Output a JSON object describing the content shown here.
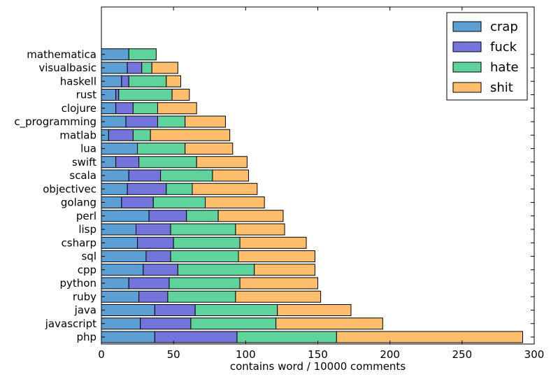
{
  "chart_data": {
    "type": "bar",
    "orientation": "horizontal",
    "stacked": true,
    "title": "",
    "xlabel": "contains word / 10000 comments",
    "ylabel": "",
    "xlim": [
      0,
      300
    ],
    "xticks": [
      0,
      50,
      100,
      150,
      200,
      250,
      300
    ],
    "grid": false,
    "legend_position": "top-right",
    "categories": [
      "php",
      "javascript",
      "java",
      "ruby",
      "python",
      "cpp",
      "sql",
      "csharp",
      "lisp",
      "perl",
      "golang",
      "objectivec",
      "scala",
      "swift",
      "lua",
      "matlab",
      "c_programming",
      "clojure",
      "rust",
      "haskell",
      "visualbasic",
      "mathematica"
    ],
    "series": [
      {
        "name": "crap",
        "color": "#5b9fd4",
        "values": [
          37,
          27,
          37,
          26,
          19,
          29,
          31,
          25,
          24,
          33,
          14,
          18,
          19,
          10,
          25,
          5,
          17,
          10,
          10,
          14,
          18,
          19
        ]
      },
      {
        "name": "fuck",
        "color": "#7474dd",
        "values": [
          57,
          35,
          28,
          20,
          28,
          24,
          17,
          25,
          24,
          26,
          22,
          27,
          22,
          16,
          0,
          17,
          22,
          12,
          2,
          5,
          10,
          0
        ]
      },
      {
        "name": "hate",
        "color": "#5ed39c",
        "values": [
          69,
          59,
          57,
          47,
          49,
          53,
          47,
          46,
          45,
          22,
          36,
          18,
          36,
          40,
          33,
          12,
          19,
          17,
          37,
          26,
          7,
          19
        ]
      },
      {
        "name": "shit",
        "color": "#ffbe6c",
        "values": [
          129,
          74,
          51,
          59,
          54,
          42,
          53,
          46,
          34,
          45,
          41,
          45,
          25,
          35,
          33,
          55,
          28,
          27,
          12,
          10,
          18,
          0
        ]
      }
    ]
  }
}
